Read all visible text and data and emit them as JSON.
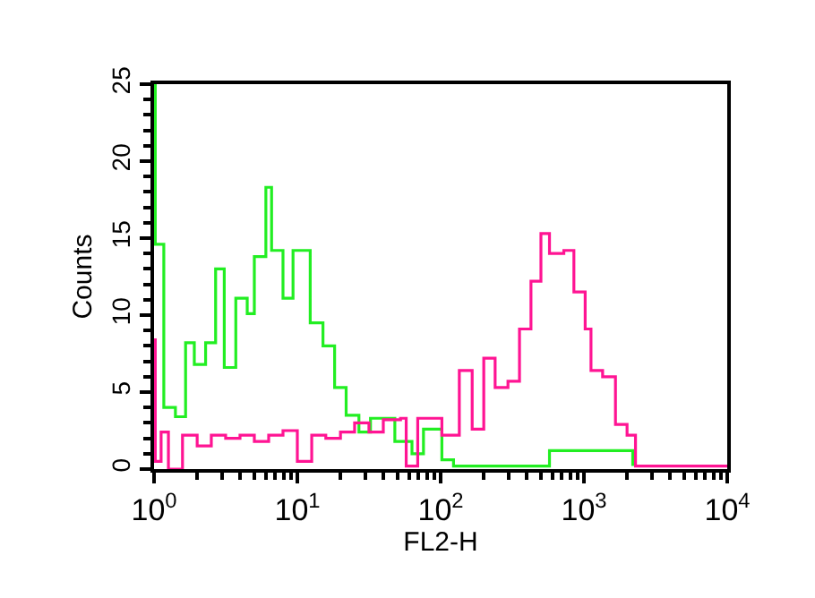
{
  "chart_data": {
    "type": "step",
    "xlabel": "FL2-H",
    "ylabel": "Counts",
    "log": "x",
    "xlim": [
      1,
      10000
    ],
    "xticks": [
      {
        "value": 1,
        "label": "10$^{0}$"
      },
      {
        "value": 10,
        "label": "10$^{1}$"
      },
      {
        "value": 100,
        "label": "10$^{2}$"
      },
      {
        "value": 1000,
        "label": "10$^{3}$"
      },
      {
        "value": 10000,
        "label": "10$^{4}$"
      }
    ],
    "ylim": [
      0,
      25
    ],
    "yticks": [
      0,
      5,
      10,
      15,
      20,
      25
    ],
    "series": [
      {
        "color": "#22ee22",
        "x": [
          1,
          1.02,
          1.17,
          1.41,
          1.66,
          1.91,
          2.29,
          2.69,
          3.09,
          3.72,
          4.47,
          5.01,
          6.03,
          6.61,
          7.94,
          9.33,
          10.7,
          12.3,
          15.1,
          18.2,
          21.9,
          26.9,
          32.4,
          47.9,
          63.1,
          75.9,
          102,
          123,
          200,
          575,
          724,
          1120,
          2190
        ],
        "values": [
          25,
          14.6,
          4,
          3.4,
          8.2,
          6.8,
          8.2,
          13,
          6.6,
          11.1,
          10.1,
          13.8,
          18.3,
          14.2,
          11.1,
          14.2,
          14.2,
          9.5,
          8,
          5.3,
          3.5,
          2.4,
          3.3,
          1.8,
          1,
          2.6,
          0.6,
          0.2,
          0.2,
          1.2,
          1.2,
          1.2,
          0.2
        ]
      },
      {
        "color": "#ff1493",
        "x": [
          1,
          1.02,
          1.12,
          1.26,
          1.58,
          2.0,
          2.51,
          3.16,
          3.98,
          5.01,
          6.31,
          7.94,
          10,
          12.6,
          15.8,
          20,
          25.1,
          31.6,
          39.8,
          52.5,
          57.5,
          69.2,
          102,
          135,
          166,
          200,
          240,
          295,
          355,
          427,
          501,
          575,
          724,
          851,
          1020,
          1120,
          1350,
          1660,
          2000,
          2290,
          10000
        ],
        "values": [
          8.4,
          0.5,
          2.4,
          0,
          2.2,
          1.5,
          2.2,
          2,
          2.2,
          1.8,
          2.2,
          2.5,
          0.5,
          2.2,
          2,
          2.4,
          3,
          2.4,
          3.2,
          3.3,
          0.2,
          3.3,
          2.2,
          6.4,
          2.6,
          7.2,
          5.3,
          5.7,
          9.1,
          12.2,
          15.3,
          14,
          14.2,
          11.5,
          9.1,
          6.4,
          6,
          2.9,
          2.2,
          0.2,
          0.2
        ]
      }
    ]
  }
}
